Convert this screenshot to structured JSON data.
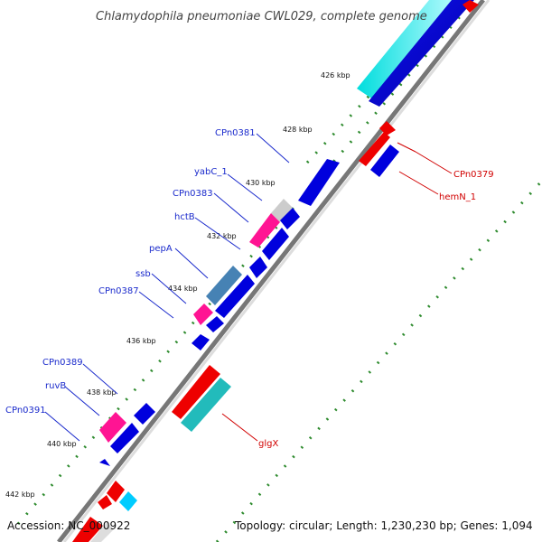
{
  "title": "Chlamydophila pneumoniae CWL029, complete genome",
  "footer": {
    "accession": "Accession: NC_000922",
    "summary": "Topology: circular; Length: 1,230,230 bp; Genes: 1,094"
  },
  "ticks": [
    "426 kbp",
    "428 kbp",
    "430 kbp",
    "432 kbp",
    "434 kbp",
    "436 kbp",
    "438 kbp",
    "440 kbp",
    "442 kbp"
  ],
  "labels_left": [
    "CPn0381",
    "yabC_1",
    "CPn0383",
    "hctB",
    "pepA",
    "ssb",
    "CPn0387",
    "CPn0389",
    "ruvB",
    "CPn0391"
  ],
  "labels_right": [
    "CPn0379",
    "hemN_1",
    "glgX"
  ],
  "colors": {
    "backbone": "#888888",
    "forward_gene": "#0000dd",
    "reverse_gene": "#ee0000",
    "cyan_gene": "#00dddd",
    "teal_gene": "#22bbbb",
    "magenta_gene": "#ff1493",
    "steel_gene": "#4682b4",
    "grey_gene": "#cccccc",
    "dots": "#2e8b2e",
    "label_blue": "#1a2acc",
    "label_red": "#d10000"
  }
}
